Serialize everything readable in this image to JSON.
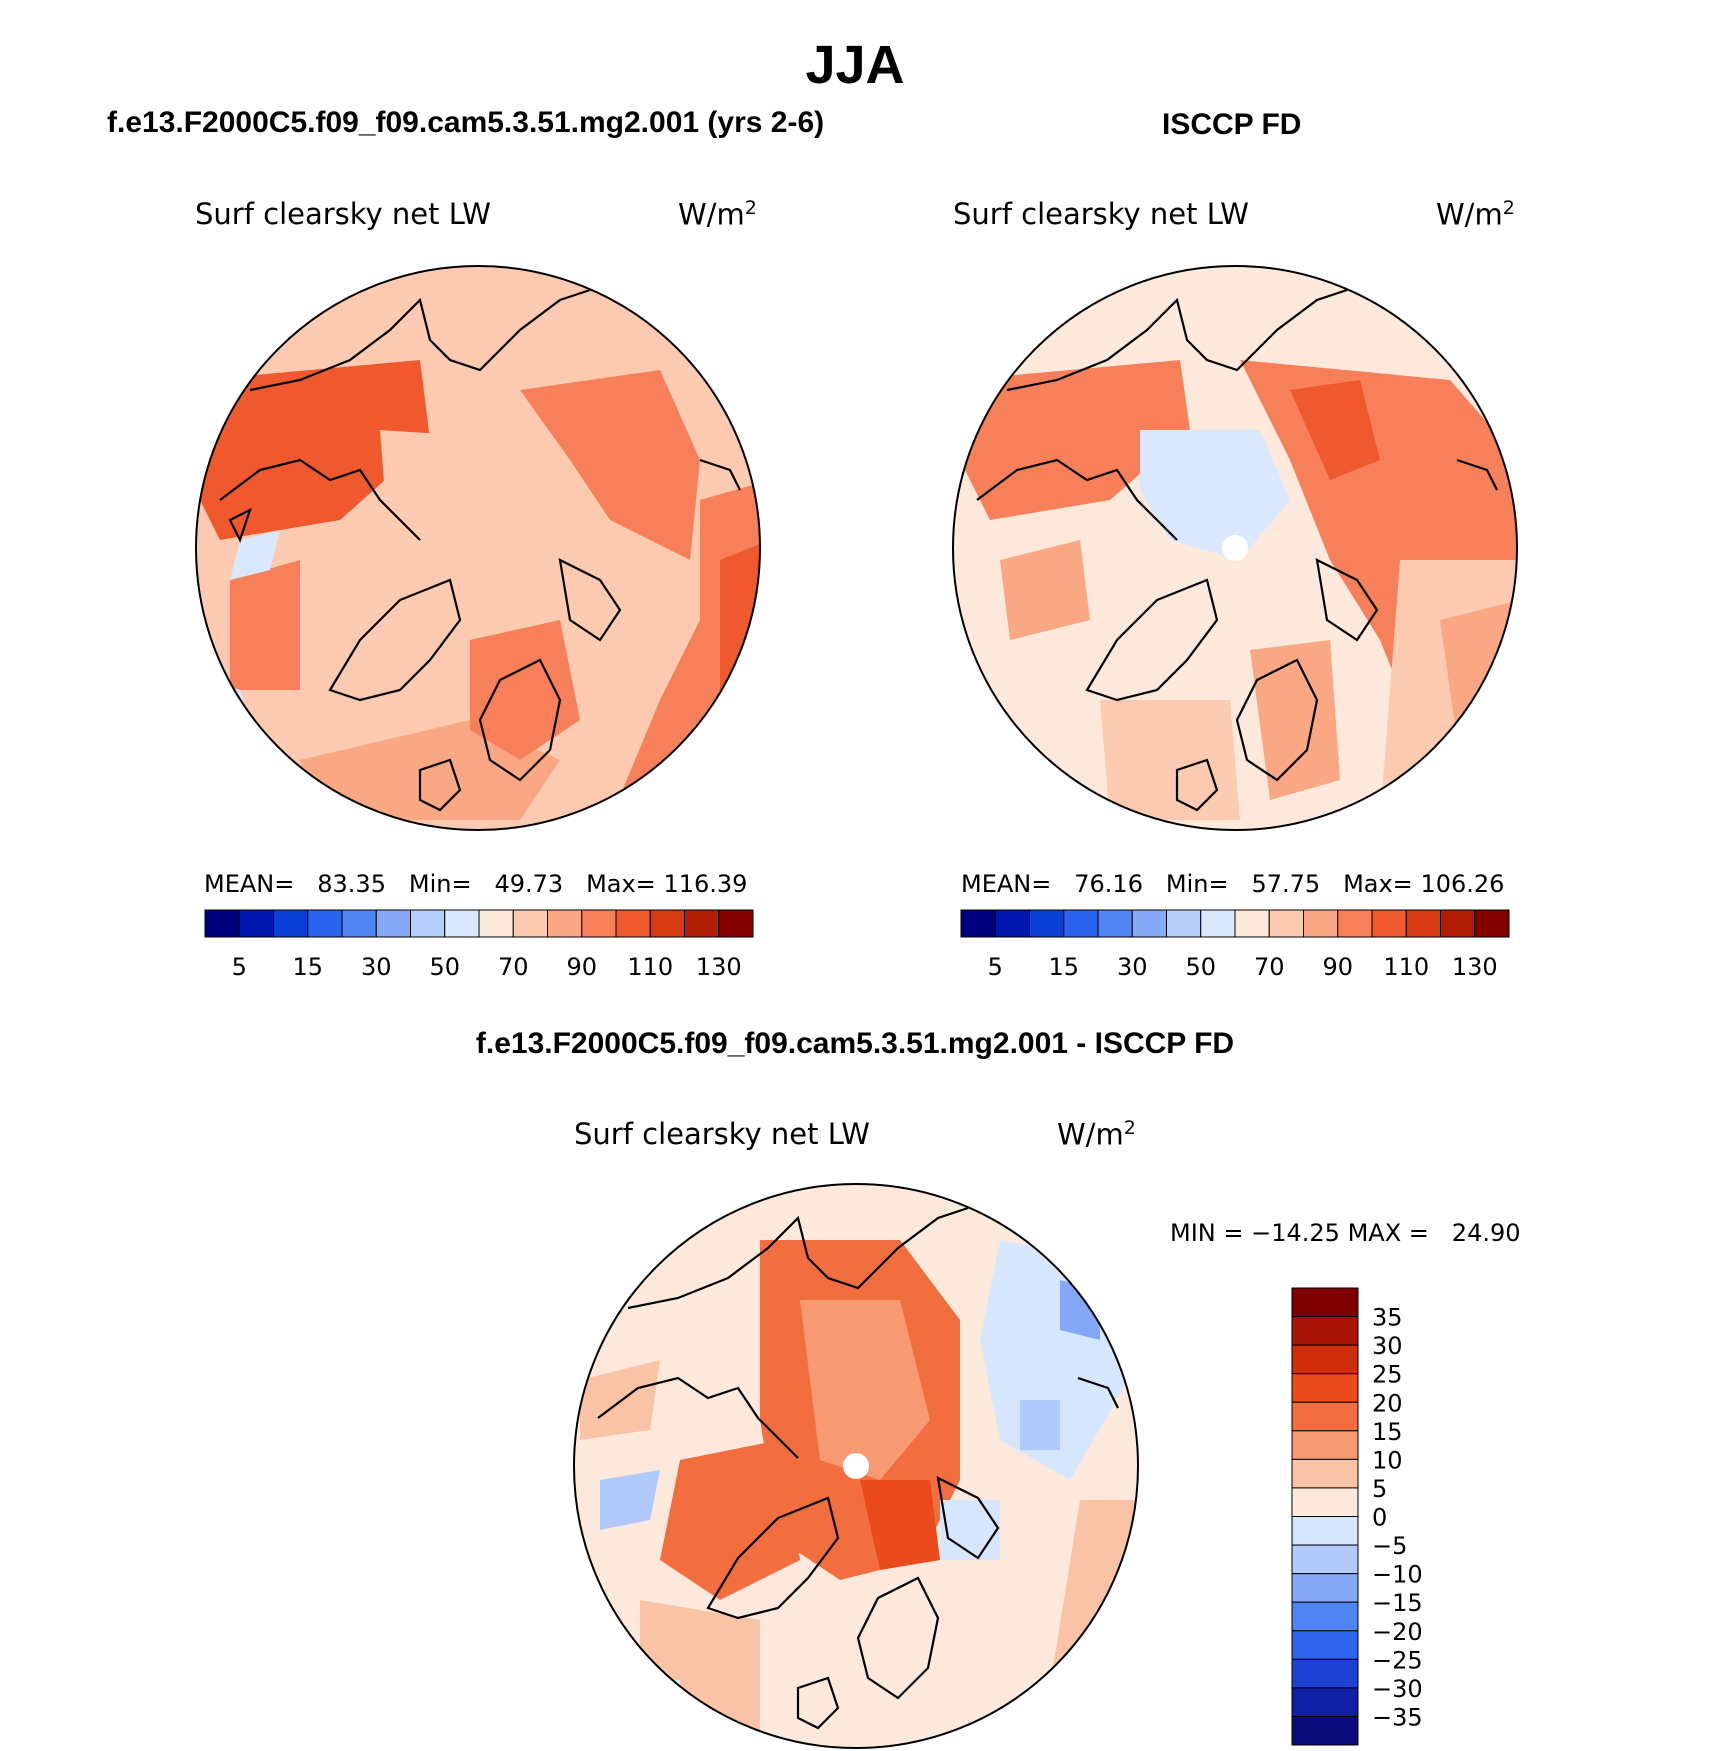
{
  "page": {
    "title": "JJA"
  },
  "colors": {
    "abs_scale": [
      "#00007f",
      "#0018b0",
      "#0a3fd6",
      "#2a63ee",
      "#5285f4",
      "#86a9f8",
      "#b4cdfb",
      "#d9e8fd",
      "#fde9dc",
      "#fccab0",
      "#faa784",
      "#f7805a",
      "#f0582e",
      "#d83a12",
      "#b21d06",
      "#840000"
    ],
    "diff_scale": [
      "#0a0a7a",
      "#0f1fa5",
      "#1d3fd4",
      "#2e63ee",
      "#4f84f5",
      "#84a7f8",
      "#b0cbfb",
      "#d5e6fd",
      "#fde9dc",
      "#fbc3a6",
      "#f79a72",
      "#f26e3f",
      "#ea4a1c",
      "#cf2e0a",
      "#a81305",
      "#800000"
    ],
    "land_outline": "#000000"
  },
  "panels": [
    {
      "id": "model",
      "heading": "f.e13.F2000C5.f09_f09.cam5.3.51.mg2.001 (yrs 2-6)",
      "variable": "Surf clearsky net LW",
      "units": "W/m",
      "units_exp": "2",
      "stats": {
        "mean_label": "MEAN=",
        "mean": "83.35",
        "min_label": "Min=",
        "min": "49.73",
        "max_label": "Max=",
        "max": "116.39"
      },
      "colorbar_labels": [
        "5",
        "15",
        "30",
        "50",
        "70",
        "90",
        "110",
        "130"
      ]
    },
    {
      "id": "obs",
      "heading": "ISCCP FD",
      "variable": "Surf clearsky net LW",
      "units": "W/m",
      "units_exp": "2",
      "stats": {
        "mean_label": "MEAN=",
        "mean": "76.16",
        "min_label": "Min=",
        "min": "57.75",
        "max_label": "Max=",
        "max": "106.26"
      },
      "colorbar_labels": [
        "5",
        "15",
        "30",
        "50",
        "70",
        "90",
        "110",
        "130"
      ]
    },
    {
      "id": "diff",
      "heading": "f.e13.F2000C5.f09_f09.cam5.3.51.mg2.001 - ISCCP FD",
      "variable": "Surf clearsky net LW",
      "units": "W/m",
      "units_exp": "2",
      "stats": {
        "min_label": "MIN =",
        "min": "−14.25",
        "max_label": "MAX =",
        "max": "24.90"
      },
      "colorbar_labels": [
        "35",
        "30",
        "25",
        "20",
        "15",
        "10",
        "5",
        "0",
        "−5",
        "−10",
        "−15",
        "−20",
        "−25",
        "−30",
        "−35"
      ]
    }
  ],
  "chart_data": [
    {
      "type": "heatmap",
      "projection": "north polar stereographic",
      "title": "f.e13.F2000C5.f09_f09.cam5.3.51.mg2.001 (yrs 2-6)",
      "variable": "Surf clearsky net LW",
      "units": "W/m2",
      "contour_levels": [
        5,
        10,
        15,
        20,
        30,
        40,
        50,
        60,
        70,
        80,
        90,
        100,
        110,
        120,
        130
      ],
      "mean": 83.35,
      "min": 49.73,
      "max": 116.39
    },
    {
      "type": "heatmap",
      "projection": "north polar stereographic",
      "title": "ISCCP FD",
      "variable": "Surf clearsky net LW",
      "units": "W/m2",
      "contour_levels": [
        5,
        10,
        15,
        20,
        30,
        40,
        50,
        60,
        70,
        80,
        90,
        100,
        110,
        120,
        130
      ],
      "mean": 76.16,
      "min": 57.75,
      "max": 106.26
    },
    {
      "type": "heatmap",
      "projection": "north polar stereographic",
      "title": "f.e13.F2000C5.f09_f09.cam5.3.51.mg2.001 - ISCCP FD",
      "variable": "Surf clearsky net LW",
      "units": "W/m2",
      "contour_levels": [
        -35,
        -30,
        -25,
        -20,
        -15,
        -10,
        -5,
        0,
        5,
        10,
        15,
        20,
        25,
        30,
        35
      ],
      "min": -14.25,
      "max": 24.9
    }
  ]
}
